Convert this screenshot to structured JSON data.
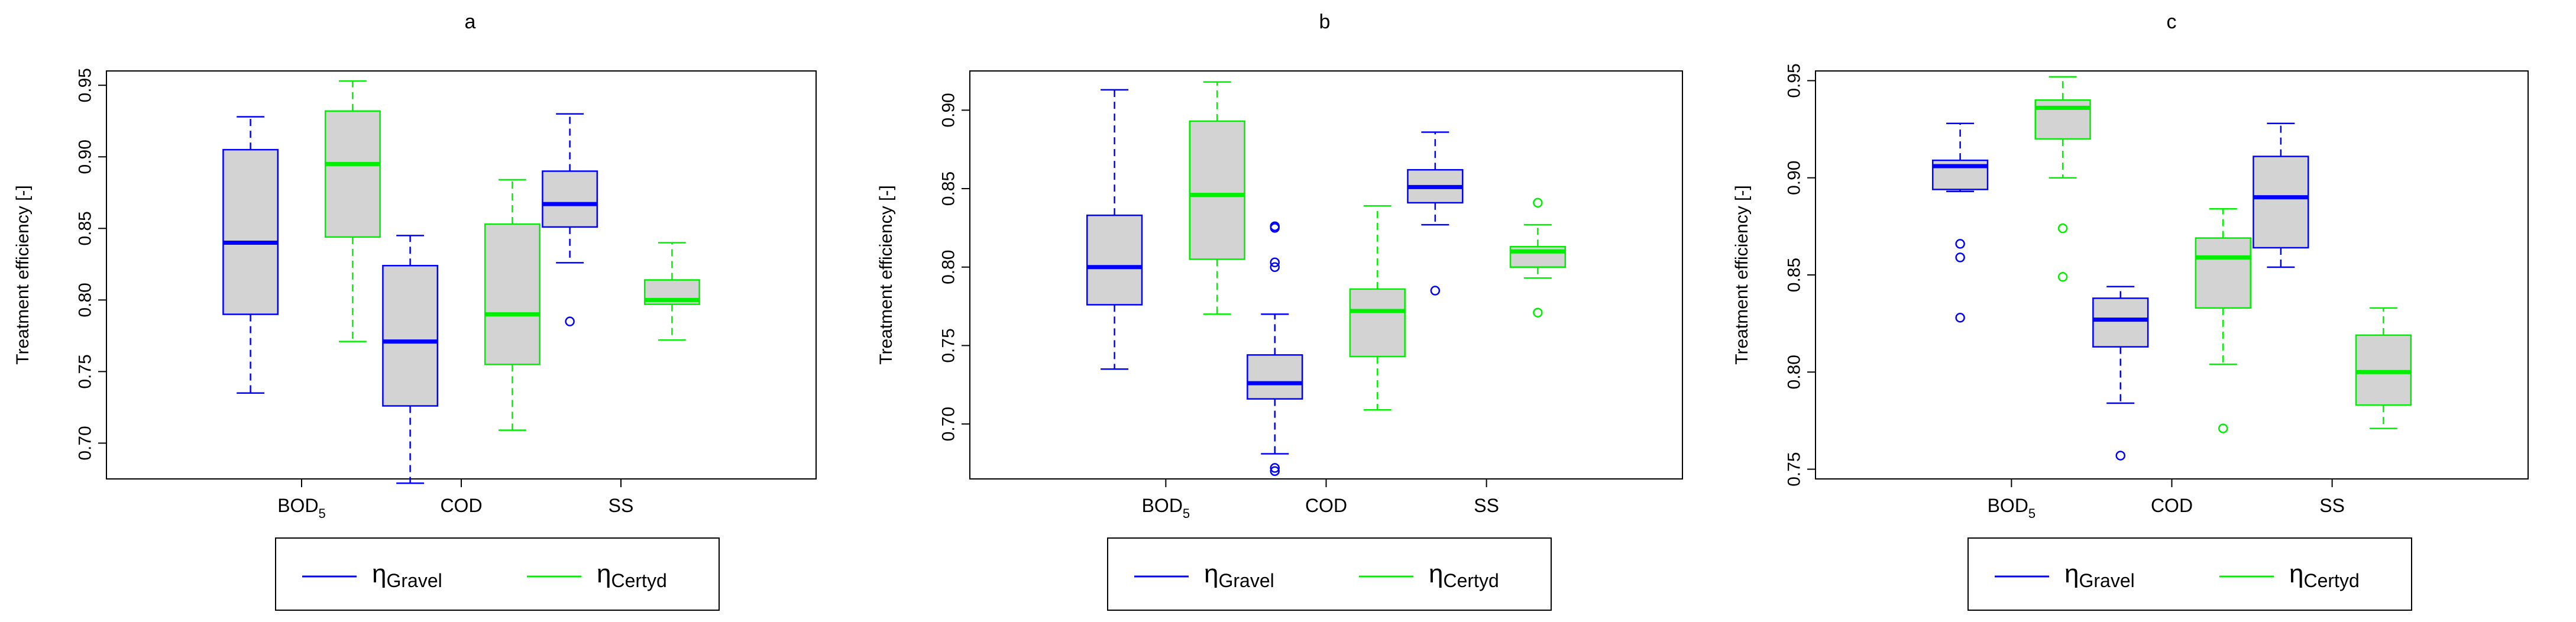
{
  "colors": {
    "gravel": "#0000ff",
    "certyd": "#00ee00",
    "box_fill": "#d3d3d3",
    "axis": "#000000"
  },
  "legend": [
    {
      "symbol": "η",
      "sub": "Gravel",
      "color": "#0000ff"
    },
    {
      "symbol": "η",
      "sub": "Certyd",
      "color": "#00ee00"
    }
  ],
  "chart_data": [
    {
      "type": "boxplot",
      "title": "a",
      "ylabel": "Treatment efficiency [-]",
      "ylim": [
        0.675,
        0.96
      ],
      "yticks": [
        "0.70",
        "0.75",
        "0.80",
        "0.85",
        "0.90",
        "0.95"
      ],
      "categories": [
        {
          "label": "BOD",
          "sub": "5"
        },
        {
          "label": "COD",
          "sub": ""
        },
        {
          "label": "SS",
          "sub": ""
        }
      ],
      "series": [
        {
          "name": "Gravel",
          "color": "#0000ff",
          "boxes": [
            {
              "low": 0.735,
              "q1": 0.79,
              "median": 0.84,
              "q3": 0.905,
              "high": 0.928,
              "outliers": []
            },
            {
              "low": 0.672,
              "q1": 0.726,
              "median": 0.771,
              "q3": 0.824,
              "high": 0.845,
              "outliers": []
            },
            {
              "low": 0.826,
              "q1": 0.851,
              "median": 0.867,
              "q3": 0.89,
              "high": 0.93,
              "outliers": [
                0.785
              ]
            }
          ]
        },
        {
          "name": "Certyd",
          "color": "#00ee00",
          "boxes": [
            {
              "low": 0.771,
              "q1": 0.844,
              "median": 0.895,
              "q3": 0.932,
              "high": 0.953,
              "outliers": []
            },
            {
              "low": 0.709,
              "q1": 0.755,
              "median": 0.79,
              "q3": 0.853,
              "high": 0.884,
              "outliers": []
            },
            {
              "low": 0.772,
              "q1": 0.797,
              "median": 0.8,
              "q3": 0.814,
              "high": 0.84,
              "outliers": []
            }
          ]
        }
      ]
    },
    {
      "type": "boxplot",
      "title": "b",
      "ylabel": "Treatment efficiency [-]",
      "ylim": [
        0.665,
        0.925
      ],
      "yticks": [
        "0.70",
        "0.75",
        "0.80",
        "0.85",
        "0.90"
      ],
      "categories": [
        {
          "label": "BOD",
          "sub": "5"
        },
        {
          "label": "COD",
          "sub": ""
        },
        {
          "label": "SS",
          "sub": ""
        }
      ],
      "series": [
        {
          "name": "Gravel",
          "color": "#0000ff",
          "boxes": [
            {
              "low": 0.735,
              "q1": 0.776,
              "median": 0.8,
              "q3": 0.833,
              "high": 0.913,
              "outliers": []
            },
            {
              "low": 0.681,
              "q1": 0.716,
              "median": 0.726,
              "q3": 0.744,
              "high": 0.77,
              "outliers": [
                0.672,
                0.67,
                0.8,
                0.803,
                0.825,
                0.826
              ]
            },
            {
              "low": 0.827,
              "q1": 0.841,
              "median": 0.851,
              "q3": 0.862,
              "high": 0.886,
              "outliers": [
                0.785
              ]
            }
          ]
        },
        {
          "name": "Certyd",
          "color": "#00ee00",
          "boxes": [
            {
              "low": 0.77,
              "q1": 0.805,
              "median": 0.846,
              "q3": 0.893,
              "high": 0.918,
              "outliers": []
            },
            {
              "low": 0.709,
              "q1": 0.743,
              "median": 0.772,
              "q3": 0.786,
              "high": 0.839,
              "outliers": []
            },
            {
              "low": 0.793,
              "q1": 0.8,
              "median": 0.81,
              "q3": 0.813,
              "high": 0.827,
              "outliers": [
                0.841,
                0.771
              ]
            }
          ]
        }
      ]
    },
    {
      "type": "boxplot",
      "title": "c",
      "ylabel": "Treatment efficiency [-]",
      "ylim": [
        0.745,
        0.955
      ],
      "yticks": [
        "0.75",
        "0.80",
        "0.85",
        "0.90",
        "0.95"
      ],
      "categories": [
        {
          "label": "BOD",
          "sub": "5"
        },
        {
          "label": "COD",
          "sub": ""
        },
        {
          "label": "SS",
          "sub": ""
        }
      ],
      "series": [
        {
          "name": "Gravel",
          "color": "#0000ff",
          "boxes": [
            {
              "low": 0.893,
              "q1": 0.894,
              "median": 0.906,
              "q3": 0.909,
              "high": 0.928,
              "outliers": [
                0.866,
                0.859,
                0.828
              ]
            },
            {
              "low": 0.784,
              "q1": 0.813,
              "median": 0.827,
              "q3": 0.838,
              "high": 0.844,
              "outliers": [
                0.757
              ]
            },
            {
              "low": 0.854,
              "q1": 0.864,
              "median": 0.89,
              "q3": 0.911,
              "high": 0.928,
              "outliers": []
            }
          ]
        },
        {
          "name": "Certyd",
          "color": "#00ee00",
          "boxes": [
            {
              "low": 0.9,
              "q1": 0.92,
              "median": 0.936,
              "q3": 0.94,
              "high": 0.952,
              "outliers": [
                0.874,
                0.849
              ]
            },
            {
              "low": 0.804,
              "q1": 0.833,
              "median": 0.859,
              "q3": 0.869,
              "high": 0.884,
              "outliers": [
                0.771
              ]
            },
            {
              "low": 0.771,
              "q1": 0.783,
              "median": 0.8,
              "q3": 0.819,
              "high": 0.833,
              "outliers": []
            }
          ]
        }
      ]
    }
  ]
}
